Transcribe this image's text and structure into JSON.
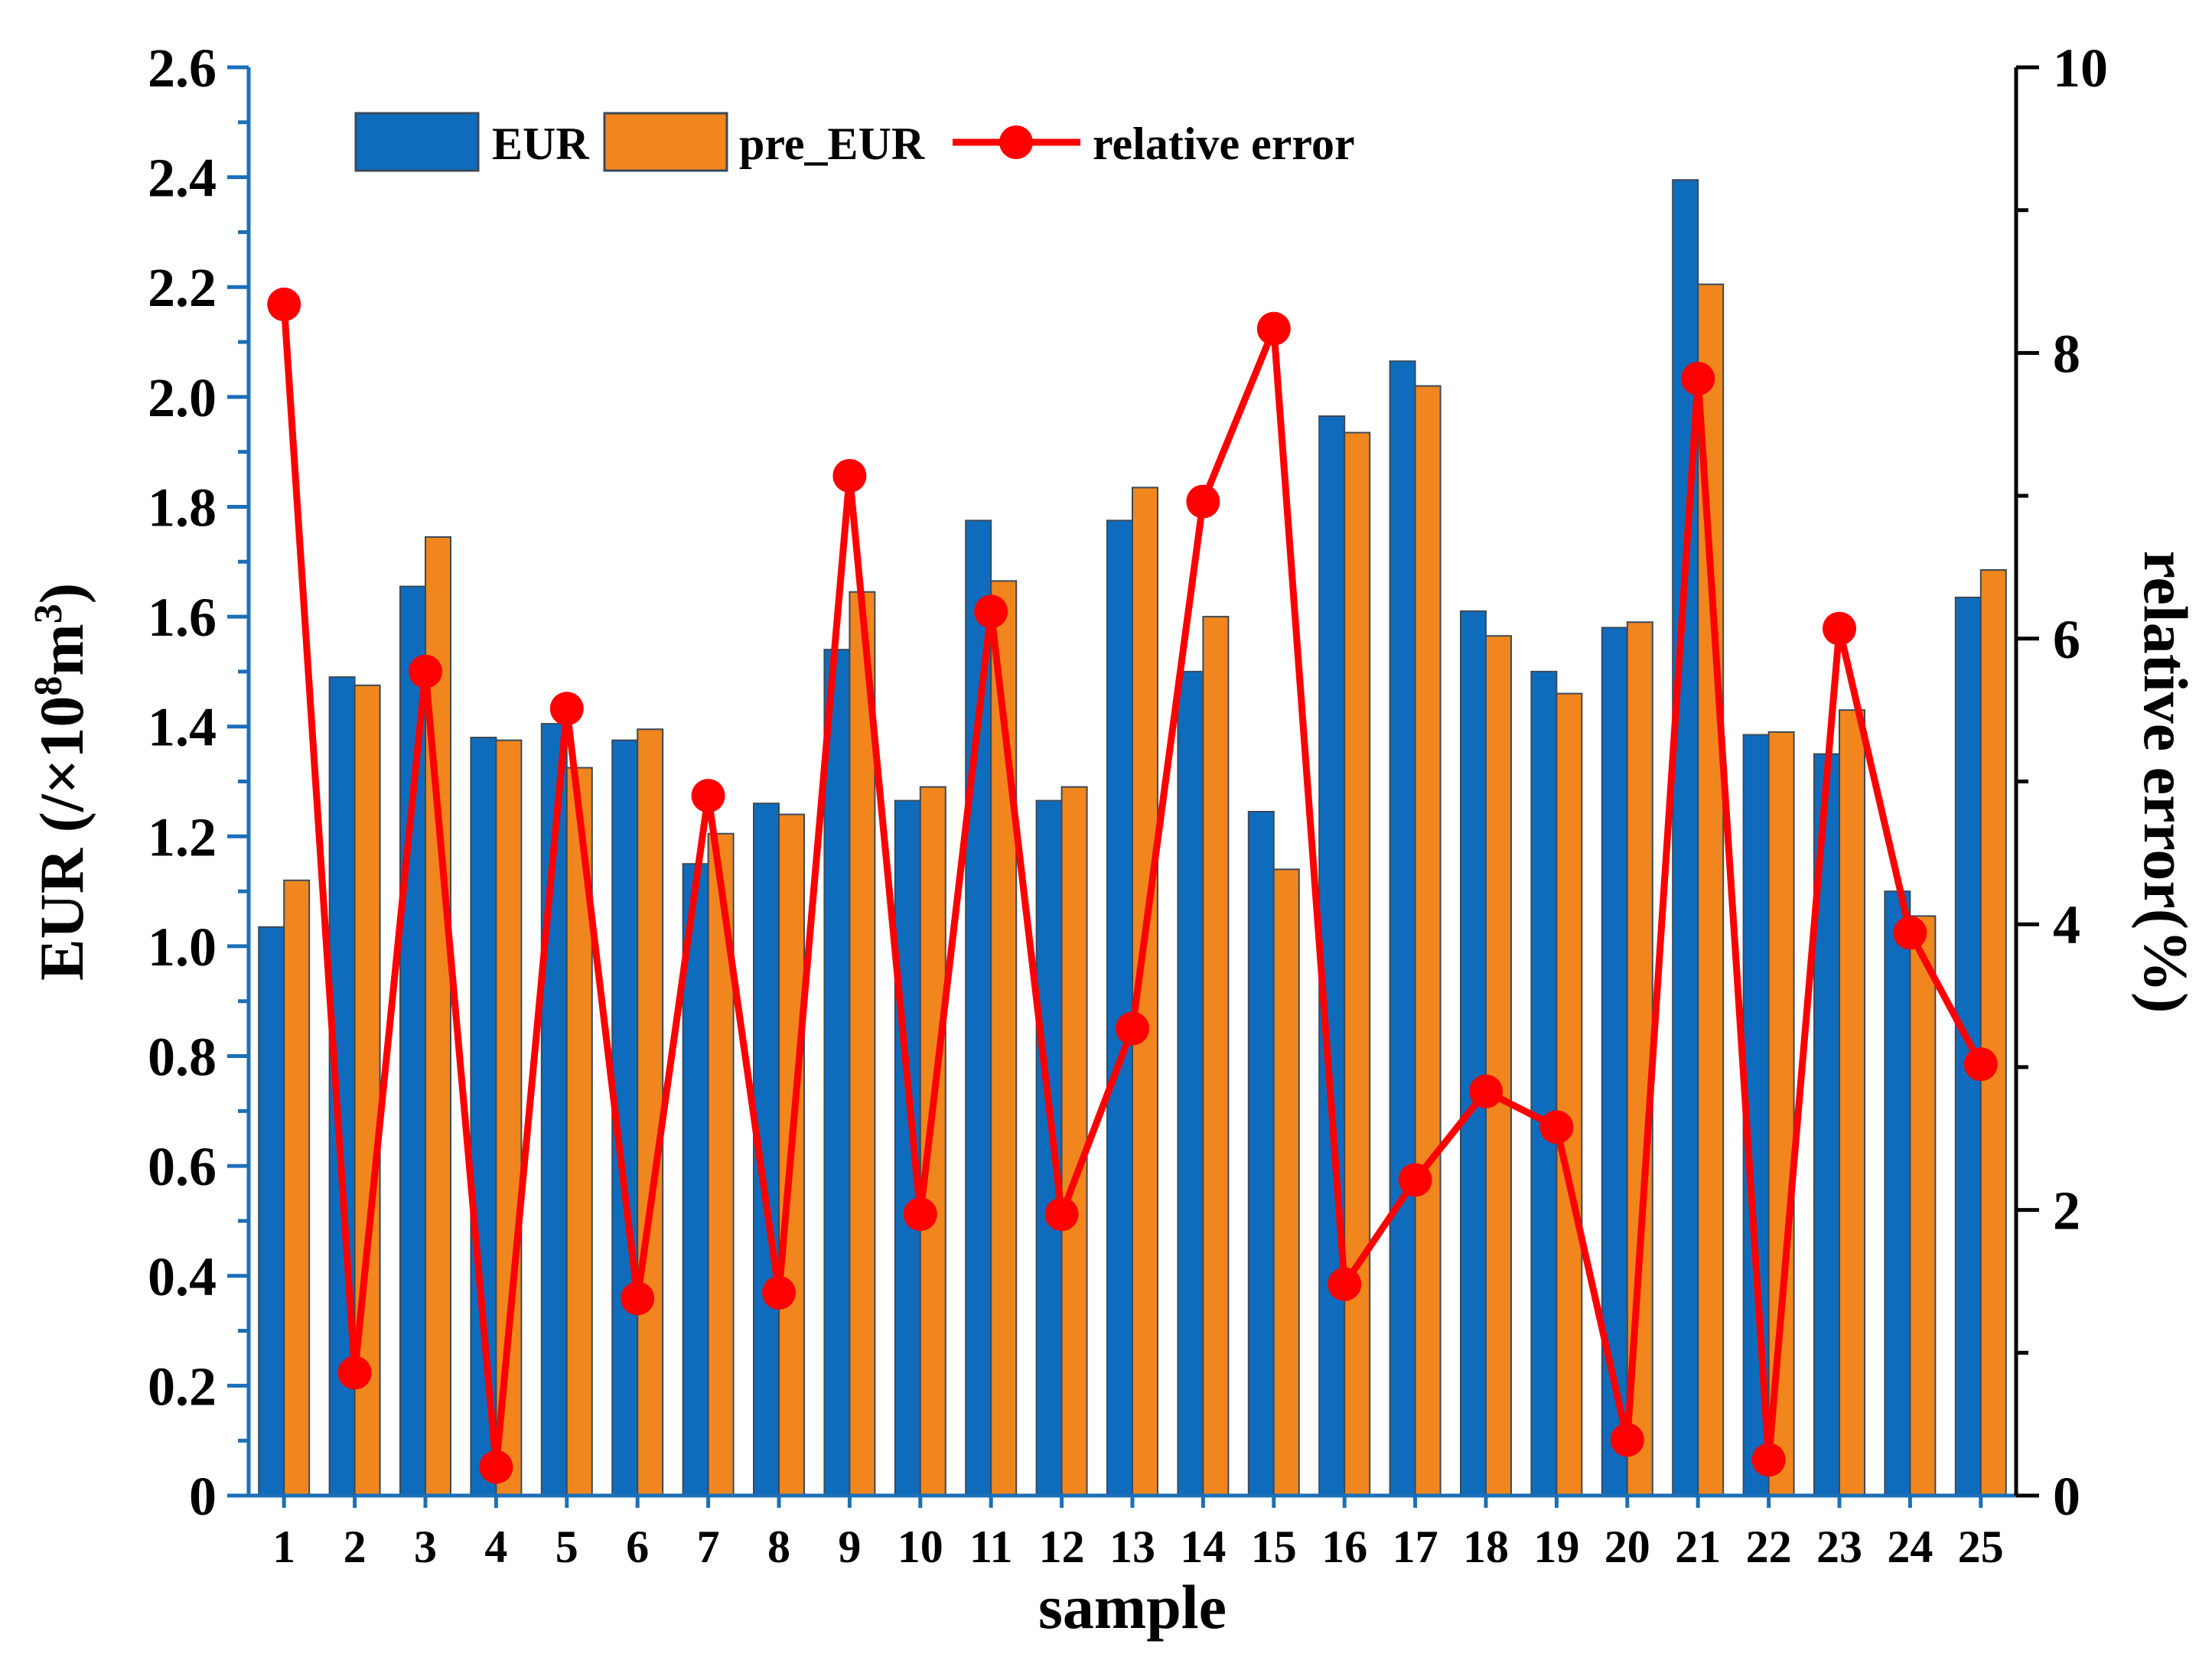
{
  "chart_data": {
    "type": "bar",
    "title": "",
    "xlabel": "sample",
    "ylabel": "EUR (/×10",
    "ylabel_sup1": "8",
    "ylabel_mid": "m",
    "ylabel_sup2": "3",
    "ylabel_end": ")",
    "y2label": "relative error(%)",
    "ylim": [
      0,
      2.6
    ],
    "y2lim": [
      0,
      10
    ],
    "yticks": [
      "0",
      "0.2",
      "0.4",
      "0.6",
      "0.8",
      "1.0",
      "1.2",
      "1.4",
      "1.6",
      "1.8",
      "2.0",
      "2.2",
      "2.4",
      "2.6"
    ],
    "y2ticks": [
      "0",
      "2",
      "4",
      "6",
      "8",
      "10"
    ],
    "categories": [
      "1",
      "2",
      "3",
      "4",
      "5",
      "6",
      "7",
      "8",
      "9",
      "10",
      "11",
      "12",
      "13",
      "14",
      "15",
      "16",
      "17",
      "18",
      "19",
      "20",
      "21",
      "22",
      "23",
      "24",
      "25"
    ],
    "legend_position": "top-left",
    "series": [
      {
        "name": "EUR",
        "kind": "bar",
        "color": "#0f6cbd",
        "values": [
          1.035,
          1.49,
          1.655,
          1.38,
          1.405,
          1.375,
          1.15,
          1.26,
          1.54,
          1.265,
          1.775,
          1.265,
          1.775,
          1.5,
          1.245,
          1.965,
          2.065,
          1.61,
          1.5,
          1.58,
          2.395,
          1.385,
          1.35,
          1.1,
          1.635
        ]
      },
      {
        "name": "pre_EUR",
        "kind": "bar",
        "color": "#f0861d",
        "values": [
          1.12,
          1.475,
          1.745,
          1.375,
          1.325,
          1.395,
          1.205,
          1.24,
          1.645,
          1.29,
          1.665,
          1.29,
          1.835,
          1.6,
          1.14,
          1.935,
          2.02,
          1.565,
          1.46,
          1.59,
          2.205,
          1.39,
          1.43,
          1.055,
          1.685
        ]
      },
      {
        "name": "relative error",
        "kind": "line",
        "axis": "right",
        "color": "#ff0000",
        "values": [
          8.34,
          0.86,
          5.77,
          0.2,
          5.51,
          1.38,
          4.9,
          1.42,
          7.14,
          1.97,
          6.19,
          1.97,
          3.27,
          6.96,
          8.17,
          1.48,
          2.21,
          2.83,
          2.58,
          0.39,
          7.82,
          0.25,
          6.07,
          3.94,
          3.02
        ]
      }
    ]
  }
}
